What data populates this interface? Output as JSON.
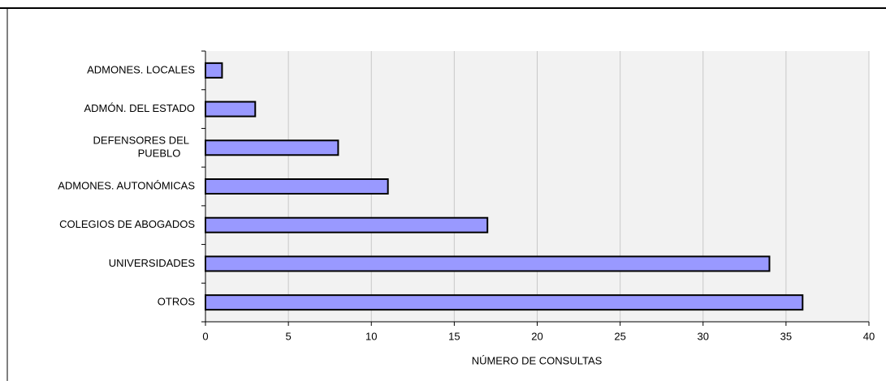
{
  "chart_data": {
    "type": "barh",
    "categories": [
      "ADMONES. LOCALES",
      "ADMÓN. DEL ESTADO",
      "DEFENSORES DEL PUEBLO",
      "ADMONES. AUTONÓMICAS",
      "COLEGIOS DE ABOGADOS",
      "UNIVERSIDADES",
      "OTROS"
    ],
    "values": [
      1,
      3,
      8,
      11,
      17,
      34,
      36
    ],
    "color": "#9999ff",
    "xlabel": "NÚMERO DE CONSULTAS",
    "xlim": [
      0,
      40
    ],
    "xticks": [
      0,
      5,
      10,
      15,
      20,
      25,
      30,
      35,
      40
    ],
    "grid": true
  }
}
